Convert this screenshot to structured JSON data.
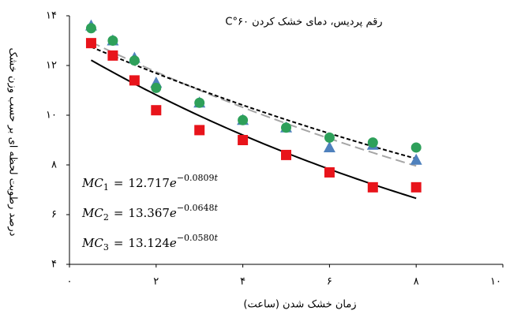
{
  "chart_data": {
    "type": "scatter",
    "title": "رقم پردیس، دمای خشک کردن ۶۰°C",
    "x_label": "زمان خشک شدن (ساعت)",
    "y_label": "درصد رطوبت لحظه ای بر حسب وزن خشک",
    "x": [
      0.5,
      1,
      1.5,
      2,
      3,
      4,
      5,
      6,
      7,
      8
    ],
    "series": [
      {
        "color": "#e8141b",
        "marker": "square",
        "values": [
          12.9,
          12.4,
          11.4,
          10.2,
          9.4,
          9.0,
          8.4,
          7.7,
          7.1,
          7.1
        ]
      },
      {
        "color": "#4f81bd",
        "marker": "triangle",
        "values": [
          13.6,
          13.0,
          12.3,
          11.3,
          10.5,
          9.8,
          9.5,
          8.7,
          8.8,
          8.2
        ]
      },
      {
        "color": "#2ea05a",
        "marker": "circle",
        "values": [
          13.5,
          13.0,
          12.2,
          11.1,
          10.5,
          9.8,
          9.5,
          9.1,
          8.9,
          8.7
        ]
      }
    ],
    "fits": [
      {
        "name": "MC",
        "index": "1",
        "a": 12.717,
        "k": {
          "value": -0.0809,
          "label": "−0.0809"
        },
        "color": "#000000",
        "line_style": "solid"
      },
      {
        "name": "MC",
        "index": "2",
        "a": 13.367,
        "k": {
          "value": -0.0648,
          "label": "−0.0648"
        },
        "color": "#a6a6a6",
        "line_style": "longdash"
      },
      {
        "name": "MC",
        "index": "3",
        "a": 13.124,
        "k": {
          "value": -0.058,
          "label": "−0.0580"
        },
        "color": "#000000",
        "line_style": "dash"
      }
    ],
    "equation_symbols": {
      "equals": "=",
      "base": "e",
      "variable": "t"
    },
    "xlim": [
      0,
      10
    ],
    "ylim": [
      4,
      14
    ],
    "xticks": [
      {
        "value": 0,
        "label": "۰"
      },
      {
        "value": 2,
        "label": "۲"
      },
      {
        "value": 4,
        "label": "۴"
      },
      {
        "value": 6,
        "label": "۶"
      },
      {
        "value": 8,
        "label": "۸"
      },
      {
        "value": 10,
        "label": "۱۰"
      }
    ],
    "yticks": [
      {
        "value": 4,
        "label": "۴"
      },
      {
        "value": 6,
        "label": "۶"
      },
      {
        "value": 8,
        "label": "۸"
      },
      {
        "value": 10,
        "label": "۱۰"
      },
      {
        "value": 12,
        "label": "۱۲"
      },
      {
        "value": 14,
        "label": "۱۴"
      }
    ],
    "grid": false
  }
}
